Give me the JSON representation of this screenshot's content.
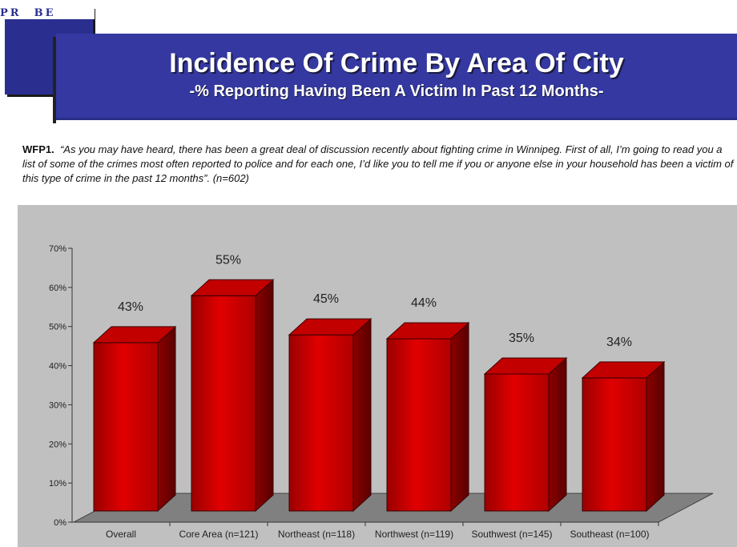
{
  "logo": {
    "letters": "PR BE"
  },
  "header": {
    "title": "Incidence Of Crime By Area Of City",
    "subtitle": "-% Reporting Having Been A Victim In Past 12 Months-"
  },
  "question": {
    "code": "WFP1.",
    "text": "“As you may have heard, there has been a great deal of discussion recently about fighting crime in Winnipeg.  First of all, I’m going to read you a list of some of the crimes most often reported to police and for each one, I’d like you to tell me if you or anyone else in your household has been a victim of this type of crime in the past 12 months”.  (n=602)"
  },
  "colors": {
    "bar_front": "#e00000",
    "bar_top": "#c20000",
    "bar_side": "#8a0000",
    "floor": "#808080",
    "panel": "#c0c0c0"
  },
  "chart_data": {
    "type": "bar",
    "categories": [
      "Overall",
      "Core Area (n=121)",
      "Northeast (n=118)",
      "Northwest (n=119)",
      "Southwest (n=145)",
      "Southeast (n=100)"
    ],
    "values": [
      43,
      55,
      45,
      44,
      35,
      34
    ],
    "value_labels": [
      "43%",
      "55%",
      "45%",
      "44%",
      "35%",
      "34%"
    ],
    "yticks": [
      "0%",
      "10%",
      "20%",
      "30%",
      "40%",
      "50%",
      "60%",
      "70%"
    ],
    "ylim": [
      0,
      70
    ],
    "grid": false,
    "style": "3d"
  }
}
